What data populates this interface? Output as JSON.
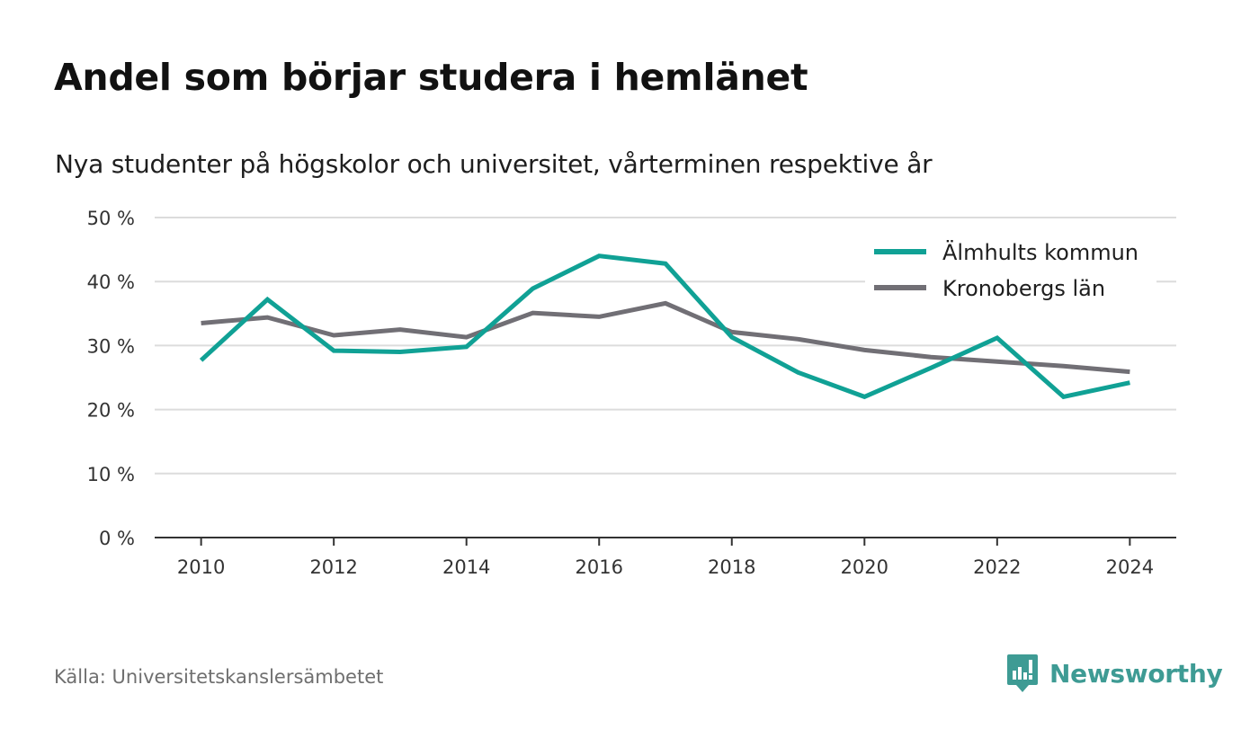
{
  "chart_data": {
    "type": "line",
    "title": "Andel som börjar studera i hemlänet",
    "subtitle": "Nya studenter på högskolor och universitet, vårterminen respektive år",
    "x": [
      2010,
      2011,
      2012,
      2013,
      2014,
      2015,
      2016,
      2017,
      2018,
      2019,
      2020,
      2021,
      2022,
      2023,
      2024
    ],
    "series": [
      {
        "name": "Älmhults kommun",
        "color": "#10a195",
        "values": [
          27.7,
          37.2,
          29.2,
          29.0,
          29.8,
          38.9,
          44.0,
          42.8,
          31.3,
          25.8,
          22.0,
          26.5,
          31.2,
          22.0,
          24.2
        ]
      },
      {
        "name": "Kronobergs län",
        "color": "#716f75",
        "values": [
          33.5,
          34.4,
          31.6,
          32.5,
          31.3,
          35.1,
          34.5,
          36.6,
          32.1,
          31.0,
          29.3,
          28.2,
          27.5,
          26.8,
          25.9
        ]
      }
    ],
    "ylim": [
      0,
      50
    ],
    "yticks": [
      0,
      10,
      20,
      30,
      40,
      50
    ],
    "ytick_labels": [
      "0 %",
      "10 %",
      "20 %",
      "30 %",
      "40 %",
      "50 %"
    ],
    "xticks": [
      2010,
      2012,
      2014,
      2016,
      2018,
      2020,
      2022,
      2024
    ],
    "xtick_labels": [
      "2010",
      "2012",
      "2014",
      "2016",
      "2018",
      "2020",
      "2022",
      "2024"
    ],
    "xlim": [
      2009.3,
      2024.7
    ],
    "xlabel": "",
    "ylabel": "",
    "grid": true,
    "legend": "top-right"
  },
  "source": "Källa: Universitetskanslersämbetet",
  "brand": {
    "name": "Newsworthy",
    "color": "#3e9b94",
    "icon": "newsworthy-logo-icon"
  },
  "colors": {
    "grid": "#dcdcdc",
    "axis": "#333333"
  }
}
